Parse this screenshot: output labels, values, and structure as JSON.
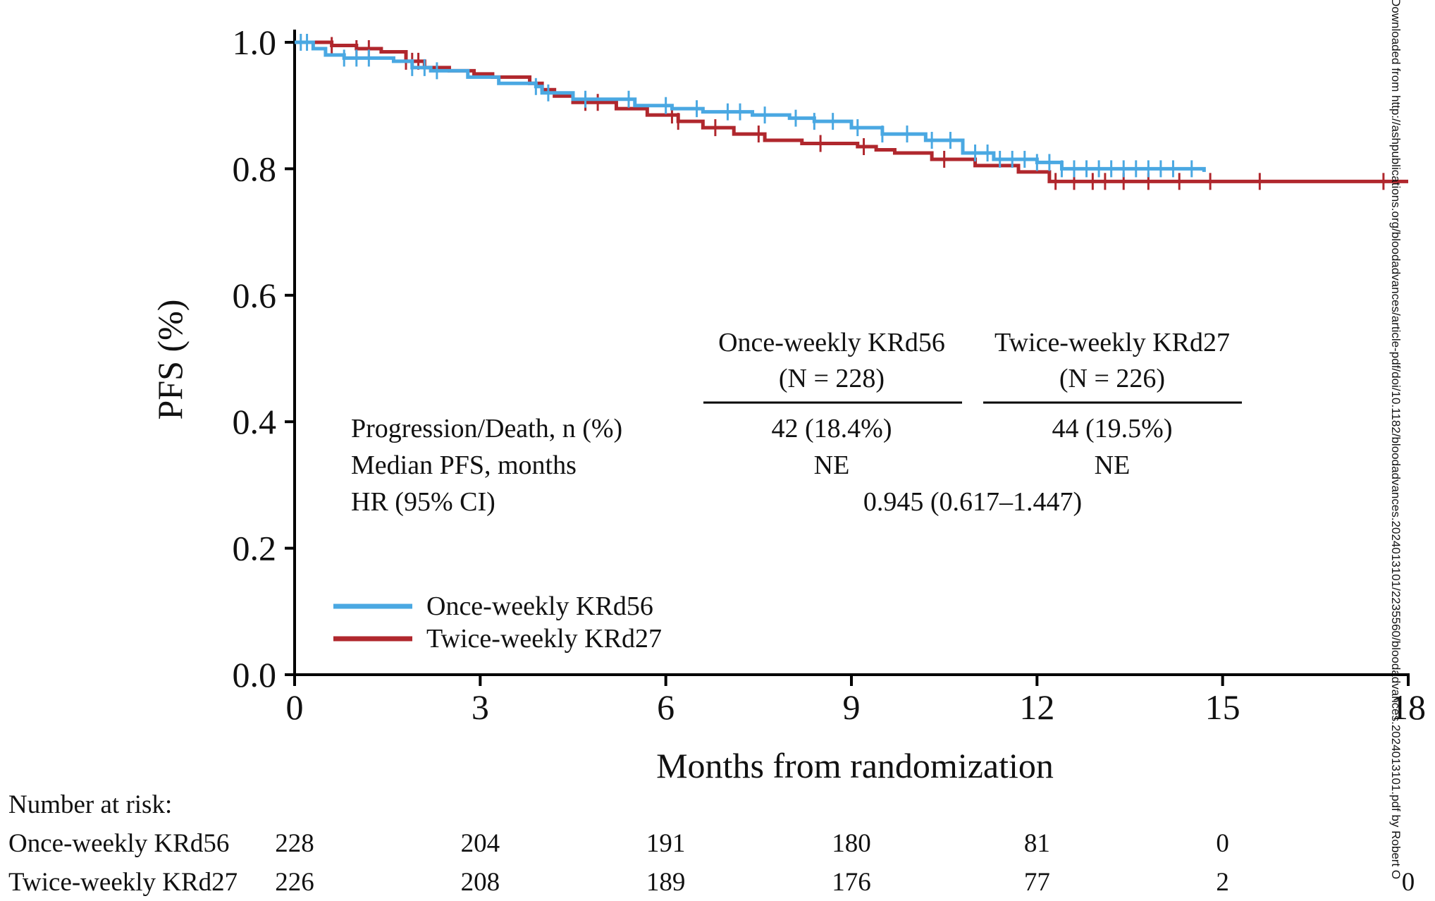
{
  "chart_data": {
    "type": "line",
    "subtype": "kaplan-meier",
    "ylabel": "PFS (%)",
    "xlabel": "Months from randomization",
    "xlim": [
      0,
      18
    ],
    "ylim": [
      0.0,
      1.0
    ],
    "x_ticks": [
      0,
      3,
      6,
      9,
      12,
      15,
      18
    ],
    "x_tick_labels": [
      "0",
      "3",
      "6",
      "9",
      "12",
      "15",
      "18"
    ],
    "y_ticks": [
      0.0,
      0.2,
      0.4,
      0.6,
      0.8,
      1.0
    ],
    "y_tick_labels": [
      "0.0",
      "0.2",
      "0.4",
      "0.6",
      "0.8",
      "1.0"
    ],
    "legend": "bottom-left",
    "series": [
      {
        "name": "Once-weekly KRd56",
        "color": "#4aa8e2",
        "x": [
          0,
          0.3,
          0.5,
          0.8,
          1.6,
          1.9,
          2.2,
          2.8,
          3.3,
          3.9,
          4.0,
          4.5,
          5.5,
          6.1,
          6.6,
          7.4,
          8.0,
          8.4,
          9.0,
          9.5,
          10.2,
          10.8,
          11.3,
          12.0,
          12.4,
          14.7
        ],
        "y": [
          1.0,
          0.99,
          0.98,
          0.975,
          0.97,
          0.96,
          0.955,
          0.945,
          0.935,
          0.93,
          0.92,
          0.91,
          0.9,
          0.895,
          0.89,
          0.885,
          0.88,
          0.875,
          0.865,
          0.855,
          0.845,
          0.825,
          0.815,
          0.81,
          0.8,
          0.795
        ],
        "censor_x": [
          0.1,
          0.2,
          0.8,
          1.0,
          1.2,
          1.9,
          2.1,
          2.3,
          3.9,
          4.1,
          4.7,
          5.4,
          6.0,
          6.5,
          7.0,
          7.2,
          7.6,
          8.1,
          8.4,
          8.7,
          9.1,
          9.5,
          9.9,
          10.3,
          10.6,
          11.0,
          11.2,
          11.4,
          11.6,
          11.8,
          12.0,
          12.2,
          12.4,
          12.6,
          12.8,
          13.0,
          13.2,
          13.4,
          13.6,
          13.8,
          14.0,
          14.2,
          14.5
        ]
      },
      {
        "name": "Twice-weekly KRd27",
        "color": "#b0272d",
        "x": [
          0,
          0.6,
          1.0,
          1.4,
          1.8,
          2.1,
          2.5,
          2.9,
          3.2,
          3.8,
          4.0,
          4.2,
          4.5,
          5.2,
          5.7,
          6.2,
          6.6,
          7.1,
          7.6,
          8.2,
          9.1,
          9.4,
          9.7,
          10.3,
          11.0,
          11.7,
          12.2,
          18.0
        ],
        "y": [
          1.0,
          0.995,
          0.99,
          0.985,
          0.97,
          0.96,
          0.955,
          0.95,
          0.945,
          0.935,
          0.925,
          0.915,
          0.905,
          0.895,
          0.885,
          0.875,
          0.865,
          0.855,
          0.845,
          0.84,
          0.835,
          0.83,
          0.825,
          0.815,
          0.805,
          0.795,
          0.78,
          0.78
        ],
        "censor_x": [
          0.6,
          1.0,
          1.2,
          1.8,
          1.9,
          2.0,
          4.7,
          4.9,
          6.1,
          6.2,
          6.8,
          7.5,
          8.5,
          9.2,
          10.5,
          12.3,
          12.6,
          12.9,
          13.1,
          13.4,
          13.8,
          14.3,
          14.8,
          15.6,
          17.6
        ]
      }
    ],
    "summary_table": {
      "columns": [
        {
          "name": "Once-weekly KRd56",
          "n": "(N = 228)"
        },
        {
          "name": "Twice-weekly KRd27",
          "n": "(N = 226)"
        }
      ],
      "rows": [
        {
          "label": "Progression/Death, n (%)",
          "values": [
            "42 (18.4%)",
            "44 (19.5%)"
          ]
        },
        {
          "label": "Median PFS, months",
          "values": [
            "NE",
            "NE"
          ]
        },
        {
          "label": "HR (95% CI)",
          "combined": "0.945 (0.617–1.447)"
        }
      ]
    },
    "risk_table": {
      "title": "Number at risk:",
      "rows": [
        {
          "label": "Once-weekly KRd56",
          "values": [
            "228",
            "204",
            "191",
            "180",
            "81",
            "0"
          ]
        },
        {
          "label": "Twice-weekly KRd27",
          "values": [
            "226",
            "208",
            "189",
            "176",
            "77",
            "2",
            "0"
          ]
        }
      ]
    },
    "watermark": "Downloaded from http://ashpublications.org/bloodadvances/article-pdf/doi/10.1182/bloodadvances.2024013101/2235560/bloodadvances.2024013101.pdf by Robert O"
  }
}
